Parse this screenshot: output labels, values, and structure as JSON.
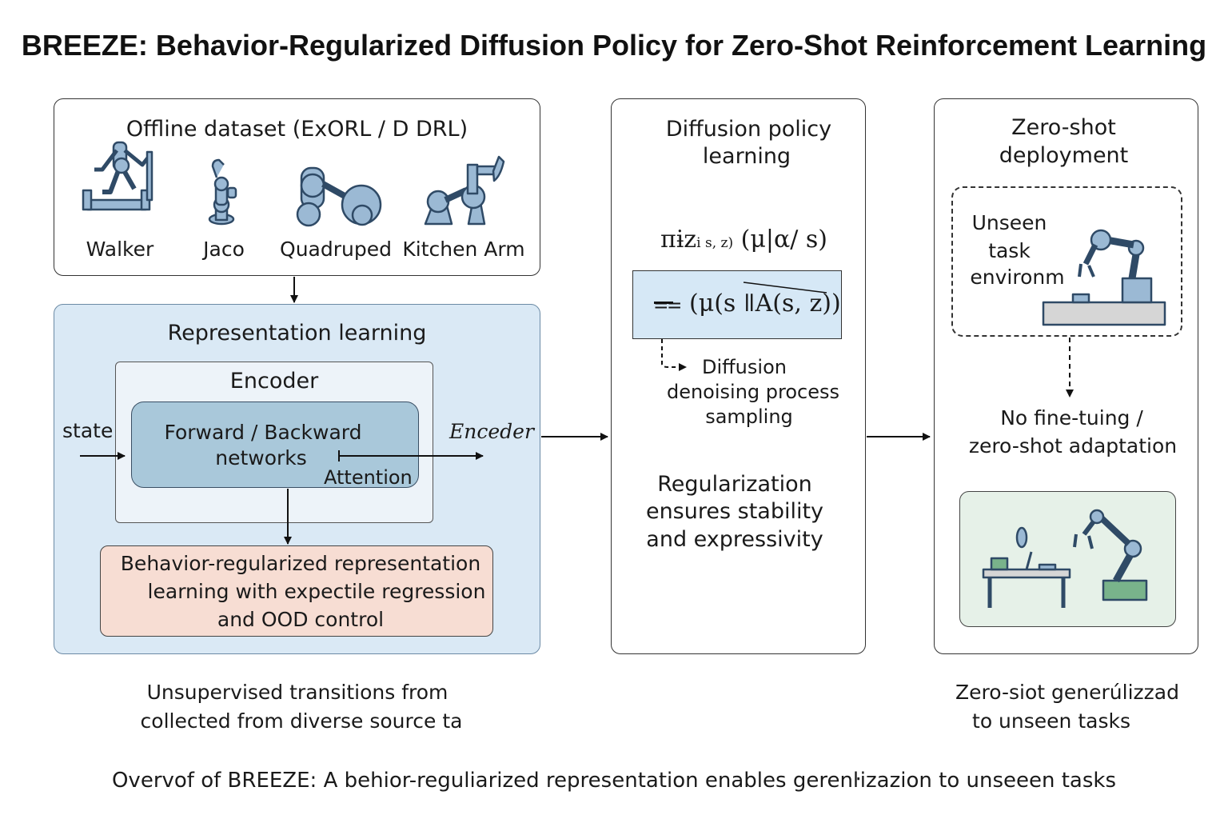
{
  "title": "BREEZE: Behavior-Regularized Diffusion Policy for Zero-Shot Reinforcement Learning",
  "offline": {
    "title": "Offline dataset (ExORL / D DRL)",
    "robots": [
      "Walker",
      "Jaco",
      "Quadruped",
      "Kitchen Arm"
    ]
  },
  "representation": {
    "title": "Representation learning",
    "encoder_title": "Encoder",
    "fb_line1": "Forward / Backward",
    "fb_line2": "networks",
    "attention": "Attention",
    "state": "state",
    "encoder_out": "Enceder",
    "behavior_line1": "Behavior-regularized representation",
    "behavior_line2": "learning with expectile regression",
    "behavior_line3": "and OOD control"
  },
  "diffusion": {
    "title_line1": "Diffusion policy",
    "title_line2": "learning",
    "formula_main": "πɨz",
    "formula_sub": "ⅰ s, z)",
    "formula_tail": "(μ|α/ s)",
    "box_formula": "(μ(s ǁA(s, z))",
    "process_line1": "Diffusion",
    "process_line2": "denoising  process",
    "process_line3": "sampling",
    "reg_line1": "Regularization",
    "reg_line2": "ensures stability",
    "reg_line3": "and expressivity"
  },
  "zeroshot": {
    "title_line1": "Zero-shot",
    "title_line2": "deployment",
    "unseen_line1": "Unseen",
    "unseen_line2": "task",
    "unseen_line3": "environm",
    "nofine_line1": "No fine-tuing /",
    "nofine_line2": "zero-shot adaptation"
  },
  "captions": {
    "left_line1": "Unsupervised transitions from",
    "left_line2": "collected from diverse source ta",
    "right_line1": "Zero-siot generúlizzad",
    "right_line2": "to unseen tasks",
    "bottom": "Overvof of BREEZE: A behior-reguliarized representation enables gerenŀizazion to unseeen tasks"
  },
  "colors": {
    "blue_panel": "#dae9f5",
    "fb_box": "#a9c8da",
    "behavior_box": "#f7ddd3",
    "formula_box": "#d6e8f6",
    "robot_fill": "#9bb9d4",
    "robot_stroke": "#2f4a66",
    "green_panel": "#e6f1e8",
    "green_base": "#79b38b"
  }
}
